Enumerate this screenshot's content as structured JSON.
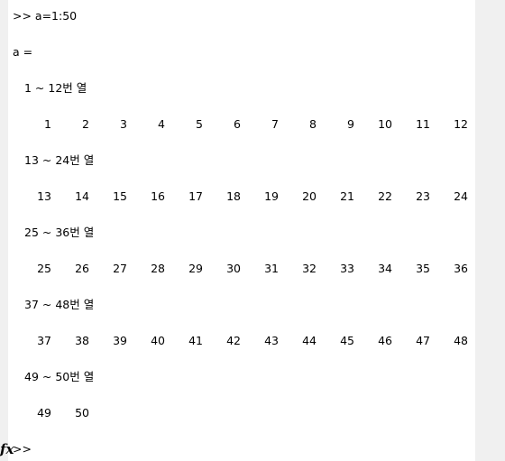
{
  "console": {
    "command_line": ">> a=1:50",
    "var_header": "a =",
    "blocks": [
      {
        "label": "1 ~ 12번 열",
        "values": [
          "1",
          "2",
          "3",
          "4",
          "5",
          "6",
          "7",
          "8",
          "9",
          "10",
          "11",
          "12"
        ]
      },
      {
        "label": "13 ~ 24번 열",
        "values": [
          "13",
          "14",
          "15",
          "16",
          "17",
          "18",
          "19",
          "20",
          "21",
          "22",
          "23",
          "24"
        ]
      },
      {
        "label": "25 ~ 36번 열",
        "values": [
          "25",
          "26",
          "27",
          "28",
          "29",
          "30",
          "31",
          "32",
          "33",
          "34",
          "35",
          "36"
        ]
      },
      {
        "label": "37 ~ 48번 열",
        "values": [
          "37",
          "38",
          "39",
          "40",
          "41",
          "42",
          "43",
          "44",
          "45",
          "46",
          "47",
          "48"
        ]
      },
      {
        "label": "49 ~ 50번 열",
        "values": [
          "49",
          "50"
        ]
      }
    ],
    "prompt": ">>"
  },
  "icons": {
    "function_icon": "fx-icon",
    "function_glyph": "fx"
  },
  "colors": {
    "console_background": "#ffffff",
    "chrome_background": "#f0f0f0",
    "text": "#000000"
  }
}
